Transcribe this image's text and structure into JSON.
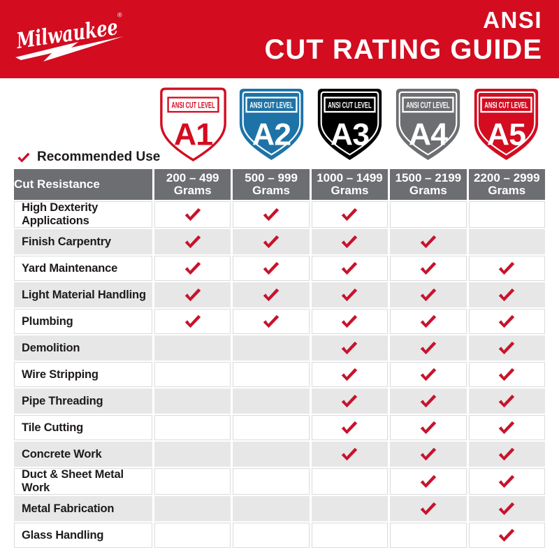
{
  "brand": {
    "logo_text": "Milwaukee",
    "registered_mark": "®"
  },
  "header": {
    "title_line1": "ANSI",
    "title_line2": "CUT RATING GUIDE"
  },
  "legend": {
    "label": "Recommended Use"
  },
  "shields": [
    {
      "level_label": "ANSI CUT LEVEL",
      "code": "A1",
      "style": "outline",
      "color": "#D30C20"
    },
    {
      "level_label": "ANSI CUT LEVEL",
      "code": "A2",
      "style": "solid",
      "color": "#1D73A8"
    },
    {
      "level_label": "ANSI CUT LEVEL",
      "code": "A3",
      "style": "solid",
      "color": "#000000"
    },
    {
      "level_label": "ANSI CUT LEVEL",
      "code": "A4",
      "style": "solid",
      "color": "#6D6E71"
    },
    {
      "level_label": "ANSI CUT LEVEL",
      "code": "A5",
      "style": "solid",
      "color": "#D30C20"
    }
  ],
  "table": {
    "first_column_header": "Cut Resistance",
    "columns": [
      {
        "range": "200 – 499",
        "unit": "Grams"
      },
      {
        "range": "500 – 999",
        "unit": "Grams"
      },
      {
        "range": "1000 – 1499",
        "unit": "Grams"
      },
      {
        "range": "1500 – 2199",
        "unit": "Grams"
      },
      {
        "range": "2200 – 2999",
        "unit": "Grams"
      }
    ],
    "rows": [
      {
        "label": "High Dexterity Applications",
        "checks": [
          true,
          true,
          true,
          false,
          false
        ]
      },
      {
        "label": "Finish Carpentry",
        "checks": [
          true,
          true,
          true,
          true,
          false
        ]
      },
      {
        "label": "Yard Maintenance",
        "checks": [
          true,
          true,
          true,
          true,
          true
        ]
      },
      {
        "label": "Light Material Handling",
        "checks": [
          true,
          true,
          true,
          true,
          true
        ]
      },
      {
        "label": "Plumbing",
        "checks": [
          true,
          true,
          true,
          true,
          true
        ]
      },
      {
        "label": "Demolition",
        "checks": [
          false,
          false,
          true,
          true,
          true
        ]
      },
      {
        "label": "Wire Stripping",
        "checks": [
          false,
          false,
          true,
          true,
          true
        ]
      },
      {
        "label": "Pipe Threading",
        "checks": [
          false,
          false,
          true,
          true,
          true
        ]
      },
      {
        "label": "Tile Cutting",
        "checks": [
          false,
          false,
          true,
          true,
          true
        ]
      },
      {
        "label": "Concrete Work",
        "checks": [
          false,
          false,
          true,
          true,
          true
        ]
      },
      {
        "label": "Duct & Sheet Metal Work",
        "checks": [
          false,
          false,
          false,
          true,
          true
        ]
      },
      {
        "label": "Metal Fabrication",
        "checks": [
          false,
          false,
          false,
          true,
          true
        ]
      },
      {
        "label": "Glass Handling",
        "checks": [
          false,
          false,
          false,
          false,
          true
        ]
      }
    ]
  },
  "colors": {
    "banner_red": "#D30C20",
    "check_red": "#C8132B",
    "header_gray": "#6D6E71",
    "row_alt_gray": "#E7E7E8",
    "shield_blue": "#1D73A8",
    "shield_black": "#000000",
    "shield_gray": "#6D6E71",
    "text_dark": "#1E1A1B"
  }
}
